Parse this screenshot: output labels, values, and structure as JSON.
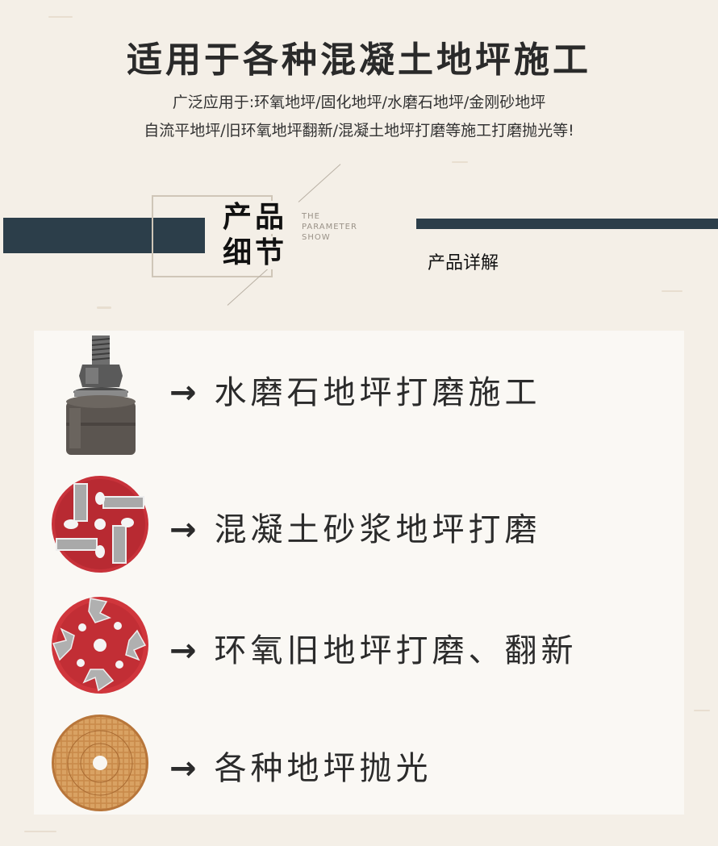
{
  "header": {
    "title": "适用于各种混凝土地坪施工",
    "subtitle_line1": "广泛应用于:环氧地坪/固化地坪/水磨石地坪/金刚砂地坪",
    "subtitle_line2": "自流平地坪/旧环氧地坪翻新/混凝土地坪打磨等施工打磨抛光等!"
  },
  "section": {
    "title_line1": "产品",
    "title_line2": "细节",
    "english_line1": "THE",
    "english_line2": "PARAMETER",
    "english_line3": "SHOW",
    "detail_label": "产品详解"
  },
  "items": [
    {
      "arrow": "→",
      "text": "水磨石地坪打磨施工",
      "icon": "threaded-connector-icon"
    },
    {
      "arrow": "→",
      "text": "混凝土砂浆地坪打磨",
      "icon": "red-bar-segment-disc-icon"
    },
    {
      "arrow": "→",
      "text": "环氧旧地坪打磨、翻新",
      "icon": "red-arrow-segment-disc-icon"
    },
    {
      "arrow": "→",
      "text": "各种地坪抛光",
      "icon": "polishing-pad-icon"
    }
  ],
  "colors": {
    "background": "#f4efe7",
    "accent_bar": "#2c3e4a",
    "disc_red": "#c8323a",
    "pad_copper": "#c98a4a"
  }
}
